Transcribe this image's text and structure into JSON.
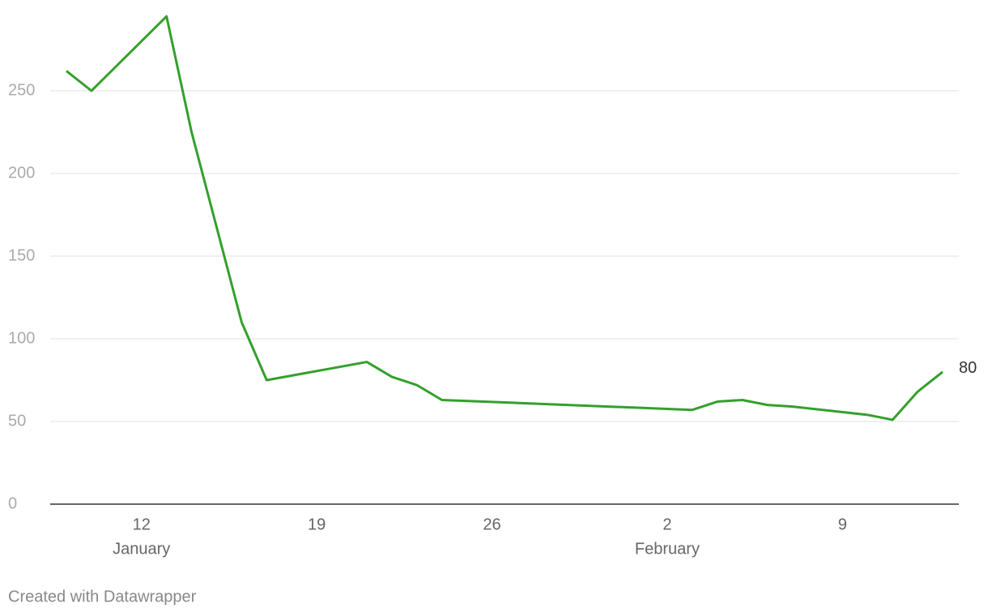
{
  "chart_data": {
    "type": "line",
    "x": [
      "01-09",
      "01-10",
      "01-13",
      "01-14",
      "01-16",
      "01-17",
      "01-21",
      "01-22",
      "01-23",
      "01-24",
      "02-03",
      "02-04",
      "02-05",
      "02-06",
      "02-07",
      "02-10",
      "02-11",
      "02-12",
      "02-13"
    ],
    "values": [
      262,
      250,
      295,
      225,
      110,
      75,
      86,
      77,
      72,
      63,
      57,
      62,
      63,
      60,
      59,
      54,
      51,
      68,
      80
    ],
    "color": "#33a02c",
    "xlim": [
      "01-09",
      "02-13"
    ],
    "xticks": [
      {
        "value": "01-12",
        "label": "12"
      },
      {
        "value": "01-19",
        "label": "19"
      },
      {
        "value": "01-26",
        "label": "26"
      },
      {
        "value": "02-02",
        "label": "2"
      },
      {
        "value": "02-09",
        "label": "9"
      }
    ],
    "x_month_labels": [
      {
        "value": "01-12",
        "label": "January"
      },
      {
        "value": "02-02",
        "label": "February"
      }
    ],
    "ylim": [
      0,
      300
    ],
    "yticks": [
      0,
      50,
      100,
      150,
      200,
      250
    ],
    "grid": true,
    "credit": "Created with Datawrapper"
  }
}
